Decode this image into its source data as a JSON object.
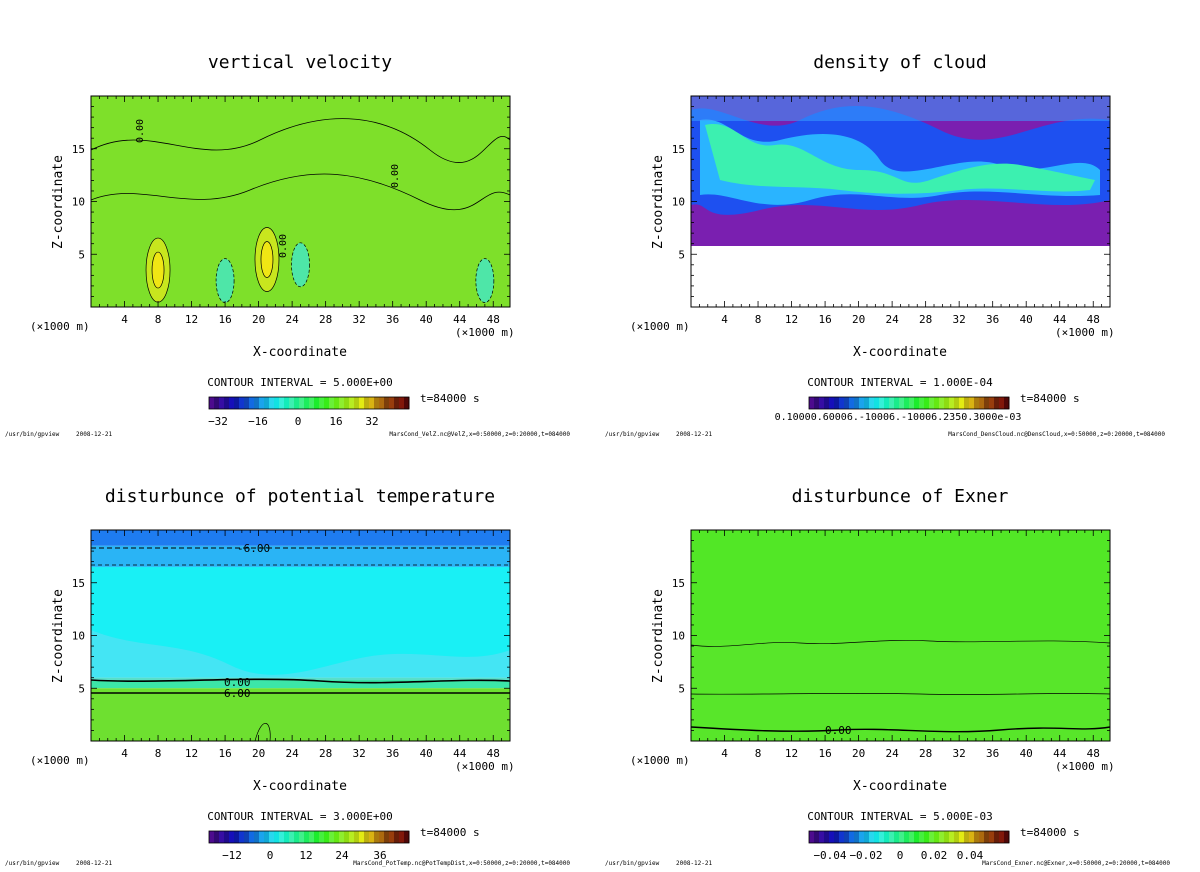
{
  "figure_meta": {
    "program": "/usr/bin/gpview",
    "date": "2008-12-21"
  },
  "chart_data": [
    {
      "type": "heatmap",
      "title": "vertical velocity",
      "xlabel": "X-coordinate",
      "ylabel": "Z-coordinate",
      "x_unit": "(×1000 m)",
      "xlim": [
        0,
        50
      ],
      "ylim": [
        0,
        20
      ],
      "x_ticks": [
        4,
        8,
        12,
        16,
        20,
        24,
        28,
        32,
        36,
        40,
        44,
        48
      ],
      "y_ticks": [
        5,
        10,
        15
      ],
      "contour_labels": [
        "0.00",
        "0.00",
        "0.00"
      ],
      "contour_interval": "CONTOUR INTERVAL = 5.000E+00",
      "time": "t=84000 s",
      "colorbar_ticks": [
        "−32",
        "−16",
        "0",
        "16",
        "32"
      ],
      "source": "MarsCond_VelZ.nc@VelZ,x=0:50000,z=0:20000,t=084000",
      "background_color": "#7ee02a",
      "features": [
        {
          "x": 8,
          "z": 3.5,
          "kind": "updraft"
        },
        {
          "x": 21,
          "z": 4.5,
          "kind": "updraft"
        },
        {
          "x": 25,
          "z": 4.0,
          "kind": "downdraft"
        },
        {
          "x": 16,
          "z": 2.5,
          "kind": "downdraft"
        },
        {
          "x": 47,
          "z": 2.5,
          "kind": "downdraft"
        }
      ]
    },
    {
      "type": "heatmap",
      "title": "density of cloud",
      "xlabel": "X-coordinate",
      "ylabel": "Z-coordinate",
      "x_unit": "(×1000 m)",
      "xlim": [
        0,
        50
      ],
      "ylim": [
        0,
        20
      ],
      "x_ticks": [
        4,
        8,
        12,
        16,
        20,
        24,
        28,
        32,
        36,
        40,
        44,
        48
      ],
      "y_ticks": [
        5,
        10,
        15
      ],
      "contour_interval": "CONTOUR INTERVAL = 1.000E-04",
      "time": "t=84000 s",
      "colorbar_ticks_text": "0.10000.60006.-10006.-10006.2350.3000e-03",
      "source": "MarsCond_DensCloud.nc@DensCloud,x=0:50000,z=0:20000,t=084000",
      "cloud_base_km": 6,
      "cloud_top_km": 20
    },
    {
      "type": "heatmap",
      "title": "disturbunce of potential temperature",
      "xlabel": "X-coordinate",
      "ylabel": "Z-coordinate",
      "x_unit": "(×1000 m)",
      "xlim": [
        0,
        50
      ],
      "ylim": [
        0,
        20
      ],
      "x_ticks": [
        4,
        8,
        12,
        16,
        20,
        24,
        28,
        32,
        36,
        40,
        44,
        48
      ],
      "y_ticks": [
        5,
        10,
        15
      ],
      "contour_labels": [
        "-6.00",
        "0.00",
        "6.00"
      ],
      "contour_interval": "CONTOUR INTERVAL = 3.000E+00",
      "time": "t=84000 s",
      "colorbar_ticks": [
        "−12",
        "0",
        "12",
        "24",
        "36"
      ],
      "source": "MarsCond_PotTemp.nc@PotTempDist,x=0:50000,z=0:20000,t=084000",
      "bands": [
        {
          "z0": 18.5,
          "z1": 20,
          "color": "#1e7cf0"
        },
        {
          "z0": 16.5,
          "z1": 18.5,
          "color": "#2ab4f5"
        },
        {
          "z0": 6,
          "z1": 16.5,
          "color": "#19f0f5"
        },
        {
          "z0": 5,
          "z1": 6,
          "color": "#3ce6a8"
        },
        {
          "z0": 0,
          "z1": 5,
          "color": "#6ee030"
        }
      ]
    },
    {
      "type": "heatmap",
      "title": "disturbunce of Exner",
      "xlabel": "X-coordinate",
      "ylabel": "Z-coordinate",
      "x_unit": "(×1000 m)",
      "xlim": [
        0,
        50
      ],
      "ylim": [
        0,
        20
      ],
      "x_ticks": [
        4,
        8,
        12,
        16,
        20,
        24,
        28,
        32,
        36,
        40,
        44,
        48
      ],
      "y_ticks": [
        5,
        10,
        15
      ],
      "contour_labels": [
        "0.00"
      ],
      "contour_interval": "CONTOUR INTERVAL = 5.000E-03",
      "time": "t=84000 s",
      "colorbar_ticks": [
        "−0.04",
        "−0.02",
        "0",
        "0.02",
        "0.04"
      ],
      "source": "MarsCond_Exner.nc@Exner,x=0:50000,z=0:20000,t=084000",
      "background_color": "#58e62a",
      "contour_levels_km": [
        9.3,
        4.5,
        1.2
      ]
    }
  ]
}
